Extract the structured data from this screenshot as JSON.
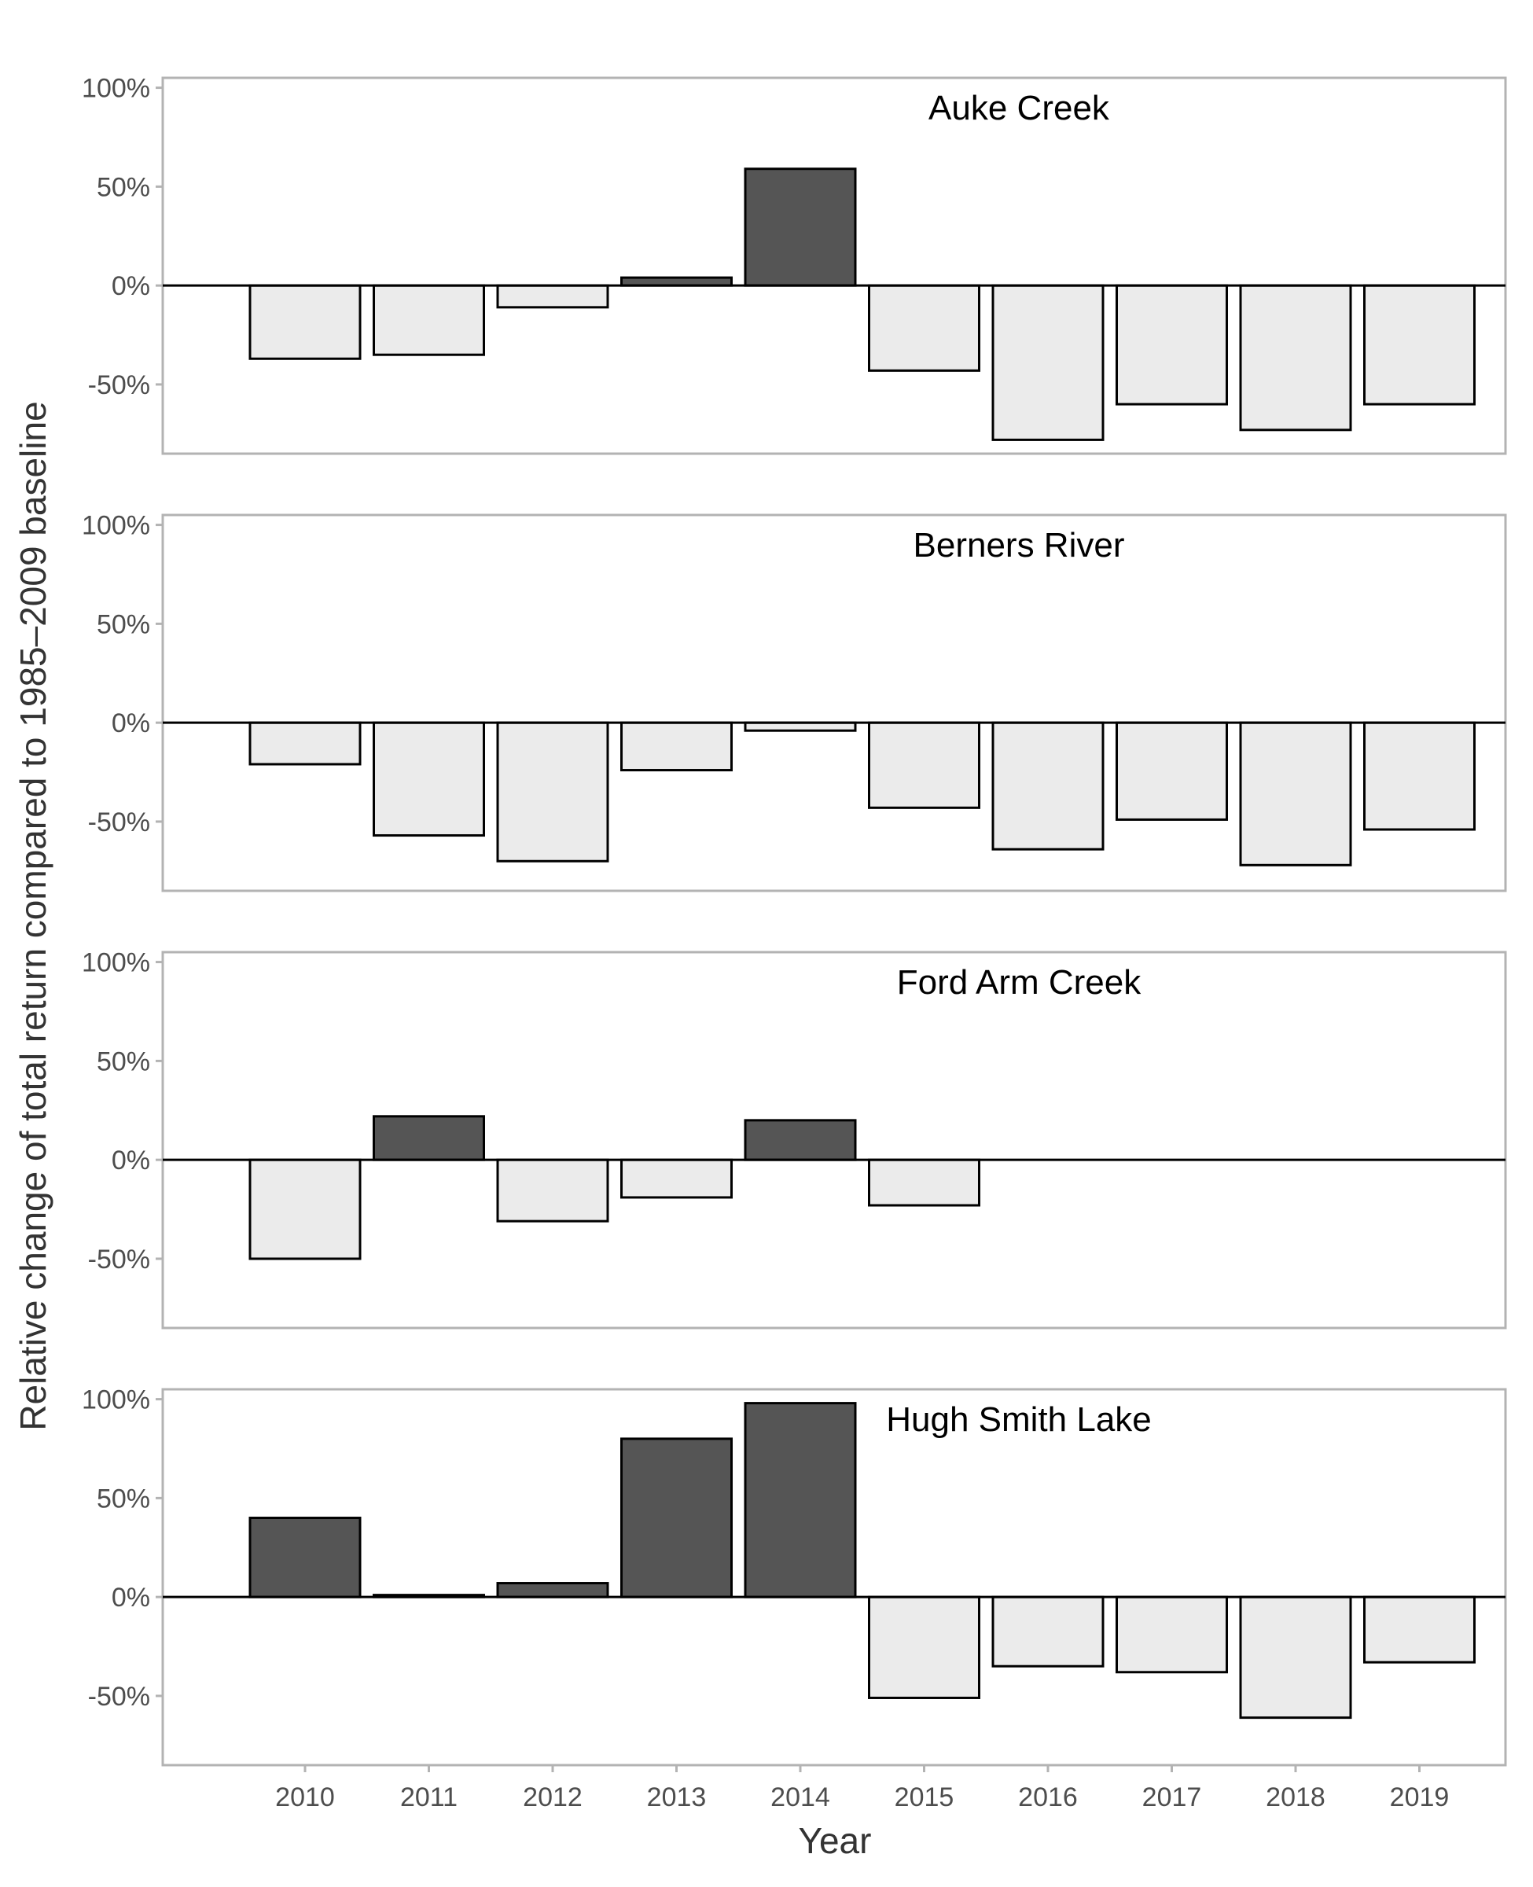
{
  "chart_data": {
    "type": "bar",
    "xlabel": "Year",
    "ylabel": "Relative change of total return compared to 1985–2009 baseline",
    "categories": [
      "2010",
      "2011",
      "2012",
      "2013",
      "2014",
      "2015",
      "2016",
      "2017",
      "2018",
      "2019"
    ],
    "ylim": [
      -85,
      105
    ],
    "yticks": [
      100,
      50,
      0,
      -50
    ],
    "ytick_labels": [
      "100%",
      "50%",
      "0%",
      "-50%"
    ],
    "grid": false,
    "colors": {
      "positive": "#555555",
      "negative": "#ebebeb",
      "outline": "#000000",
      "frame": "#b3b3b3"
    },
    "panels": [
      {
        "title": "Auke Creek",
        "values": [
          -37,
          -35,
          -11,
          4,
          59,
          -43,
          -78,
          -60,
          -73,
          -60
        ]
      },
      {
        "title": "Berners River",
        "values": [
          -21,
          -57,
          -70,
          -24,
          -4,
          -43,
          -64,
          -49,
          -72,
          -54
        ]
      },
      {
        "title": "Ford Arm Creek",
        "values": [
          -50,
          22,
          -31,
          -19,
          20,
          -23,
          null,
          null,
          null,
          null
        ]
      },
      {
        "title": "Hugh Smith Lake",
        "values": [
          40,
          1,
          7,
          80,
          98,
          -51,
          -35,
          -38,
          -61,
          -33
        ]
      }
    ]
  }
}
